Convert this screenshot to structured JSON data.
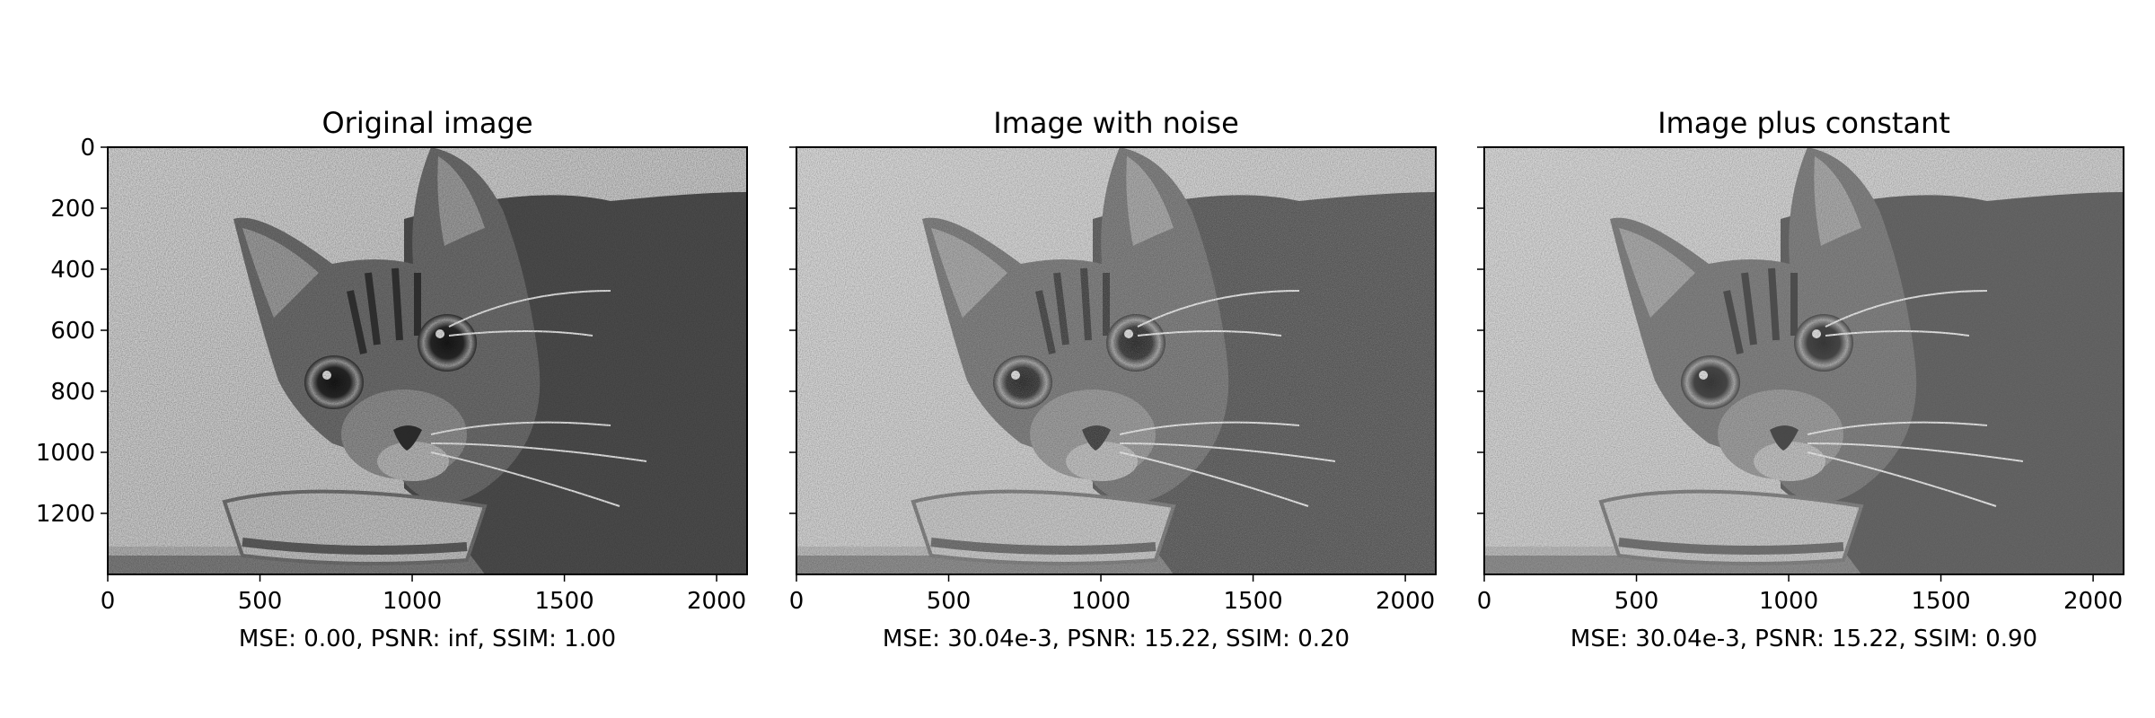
{
  "figure": {
    "panels": [
      {
        "title": "Original image",
        "xlabel": "MSE: 0.00, PSNR: inf, SSIM: 1.00",
        "noise": false,
        "brightness": 0.0
      },
      {
        "title": "Image with noise",
        "xlabel": "MSE: 30.04e-3, PSNR: 15.22, SSIM: 0.20",
        "noise": true,
        "brightness": 0.0
      },
      {
        "title": "Image plus constant",
        "xlabel": "MSE: 30.04e-3, PSNR: 15.22, SSIM: 0.90",
        "noise": false,
        "brightness": 0.15
      }
    ],
    "x_ticks": [
      "0",
      "500",
      "1000",
      "1500",
      "2000"
    ],
    "y_ticks": [
      "0",
      "200",
      "400",
      "600",
      "800",
      "1000",
      "1200"
    ],
    "x_tick_values": [
      0,
      500,
      1000,
      1500,
      2000
    ],
    "y_tick_values": [
      0,
      200,
      400,
      600,
      800,
      1000,
      1200
    ],
    "xlim": [
      0,
      2100
    ],
    "ylim": [
      1400,
      0
    ],
    "colors": {
      "background_wall": "#c8c8c8",
      "cat_fur": "#5a5a5a",
      "frame": "#000000"
    }
  }
}
